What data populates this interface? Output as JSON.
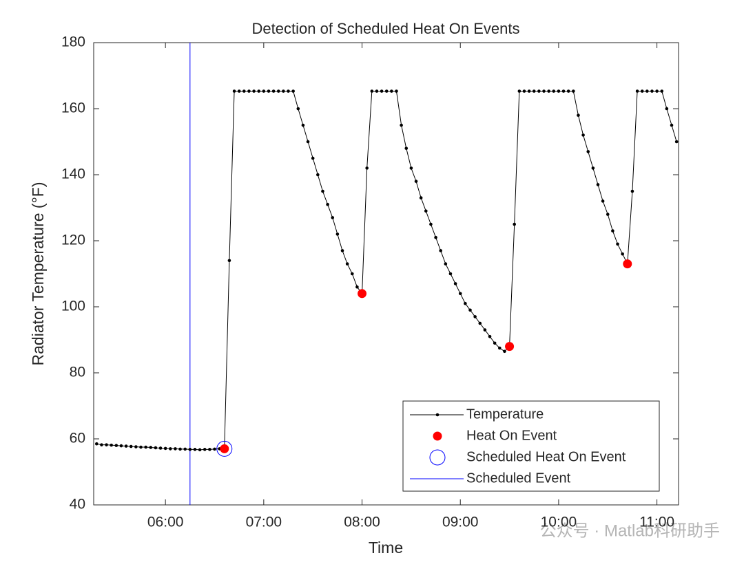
{
  "chart_data": {
    "type": "line",
    "title": "Detection of Scheduled Heat On Events",
    "xlabel": "Time",
    "ylabel": "Radiator Temperature (°F)",
    "watermark": "公众号 · Matlab科研助手",
    "xlim": [
      5.27,
      11.22
    ],
    "xticks": [
      {
        "value": 6,
        "label": "06:00"
      },
      {
        "value": 7,
        "label": "07:00"
      },
      {
        "value": 8,
        "label": "08:00"
      },
      {
        "value": 9,
        "label": "09:00"
      },
      {
        "value": 10,
        "label": "10:00"
      },
      {
        "value": 11,
        "label": "11:00"
      }
    ],
    "ylim": [
      40,
      180
    ],
    "yticks": [
      40,
      60,
      80,
      100,
      120,
      140,
      160,
      180
    ],
    "legend": "southeast",
    "series": [
      {
        "name": "Temperature",
        "color": "#000000",
        "style": "line-dot",
        "x": [
          5.3,
          5.35,
          5.4,
          5.45,
          5.5,
          5.55,
          5.6,
          5.65,
          5.7,
          5.75,
          5.8,
          5.85,
          5.9,
          5.95,
          6.0,
          6.05,
          6.1,
          6.15,
          6.2,
          6.25,
          6.3,
          6.35,
          6.4,
          6.45,
          6.5,
          6.55,
          6.6,
          6.65,
          6.7,
          6.75,
          6.8,
          6.85,
          6.9,
          6.95,
          7.0,
          7.05,
          7.1,
          7.15,
          7.2,
          7.25,
          7.3,
          7.35,
          7.4,
          7.45,
          7.5,
          7.55,
          7.6,
          7.65,
          7.7,
          7.75,
          7.8,
          7.85,
          7.9,
          7.95,
          8.0,
          8.05,
          8.1,
          8.15,
          8.2,
          8.25,
          8.3,
          8.35,
          8.4,
          8.45,
          8.5,
          8.55,
          8.6,
          8.65,
          8.7,
          8.75,
          8.8,
          8.85,
          8.9,
          8.95,
          9.0,
          9.05,
          9.1,
          9.15,
          9.2,
          9.25,
          9.3,
          9.35,
          9.4,
          9.45,
          9.5,
          9.55,
          9.6,
          9.65,
          9.7,
          9.75,
          9.8,
          9.85,
          9.9,
          9.95,
          10.0,
          10.05,
          10.1,
          10.15,
          10.2,
          10.25,
          10.3,
          10.35,
          10.4,
          10.45,
          10.5,
          10.55,
          10.6,
          10.65,
          10.7,
          10.75,
          10.8,
          10.85,
          10.9,
          10.95,
          11.0,
          11.05,
          11.1,
          11.15,
          11.2
        ],
        "values": [
          58.5,
          58.2,
          58.2,
          58.1,
          58.0,
          57.9,
          57.8,
          57.7,
          57.6,
          57.5,
          57.5,
          57.4,
          57.3,
          57.2,
          57.1,
          57.0,
          57.0,
          56.9,
          56.9,
          56.8,
          56.8,
          56.7,
          56.8,
          56.8,
          56.9,
          57.0,
          57.0,
          114,
          165.3,
          165.3,
          165.3,
          165.3,
          165.3,
          165.3,
          165.3,
          165.3,
          165.3,
          165.3,
          165.3,
          165.3,
          165.3,
          160,
          155,
          150,
          145,
          140,
          135,
          131,
          127,
          122,
          117,
          113,
          110,
          106,
          104,
          142,
          165.3,
          165.3,
          165.3,
          165.3,
          165.3,
          165.3,
          155,
          148,
          142,
          138,
          133,
          129,
          125,
          121,
          117,
          113,
          110,
          107,
          104,
          101,
          99,
          97,
          95,
          93,
          91,
          89,
          87.5,
          86.5,
          88,
          125,
          165.3,
          165.3,
          165.3,
          165.3,
          165.3,
          165.3,
          165.3,
          165.3,
          165.3,
          165.3,
          165.3,
          165.3,
          158,
          152,
          147,
          142,
          137,
          132,
          128,
          123,
          119,
          116,
          113,
          135,
          165.3,
          165.3,
          165.3,
          165.3,
          165.3,
          165.3,
          160,
          155,
          150
        ]
      },
      {
        "name": "Heat On Event",
        "color": "#ff0000",
        "style": "dot",
        "x": [
          6.6,
          8.0,
          9.5,
          10.7
        ],
        "values": [
          57,
          104,
          88,
          113
        ]
      },
      {
        "name": "Scheduled Heat On Event",
        "color": "#0000ff",
        "style": "circle",
        "x": [
          6.6
        ],
        "values": [
          57
        ]
      },
      {
        "name": "Scheduled Event",
        "color": "#0000ff",
        "style": "vline",
        "x": [
          6.25
        ]
      }
    ]
  }
}
